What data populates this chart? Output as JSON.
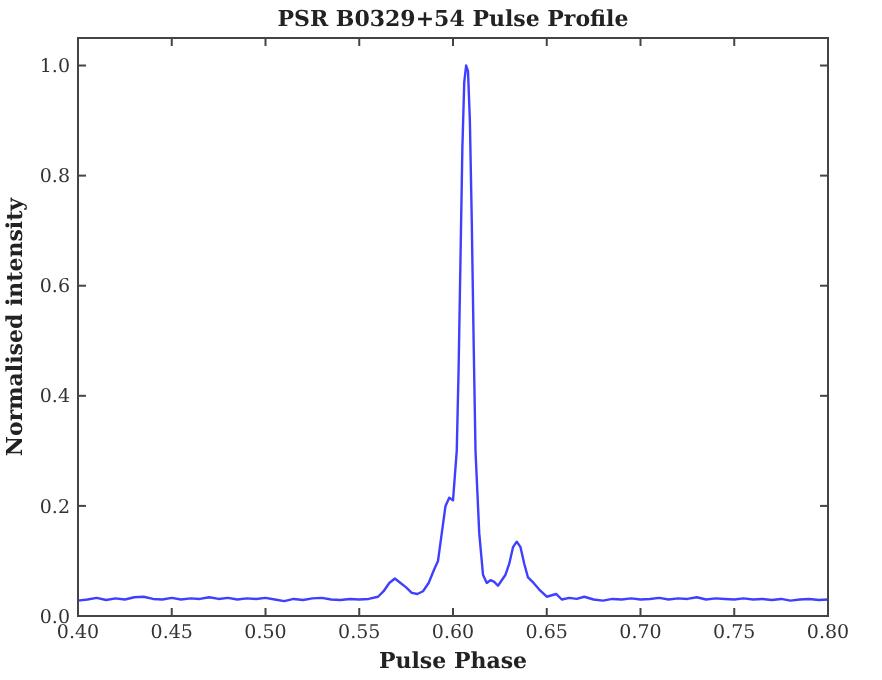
{
  "chart_data": {
    "type": "line",
    "title": "PSR B0329+54 Pulse Profile",
    "xlabel": "Pulse Phase",
    "ylabel": "Normalised intensity",
    "x": [
      0.4,
      0.405,
      0.41,
      0.415,
      0.42,
      0.425,
      0.43,
      0.435,
      0.44,
      0.445,
      0.45,
      0.455,
      0.46,
      0.465,
      0.47,
      0.475,
      0.48,
      0.485,
      0.49,
      0.495,
      0.5,
      0.505,
      0.51,
      0.515,
      0.52,
      0.525,
      0.53,
      0.535,
      0.54,
      0.545,
      0.55,
      0.555,
      0.56,
      0.563,
      0.566,
      0.569,
      0.572,
      0.575,
      0.578,
      0.581,
      0.584,
      0.587,
      0.59,
      0.592,
      0.594,
      0.596,
      0.598,
      0.6,
      0.602,
      0.603,
      0.604,
      0.605,
      0.606,
      0.607,
      0.608,
      0.609,
      0.61,
      0.611,
      0.612,
      0.614,
      0.616,
      0.618,
      0.62,
      0.622,
      0.624,
      0.626,
      0.628,
      0.63,
      0.632,
      0.634,
      0.636,
      0.638,
      0.64,
      0.643,
      0.646,
      0.65,
      0.655,
      0.658,
      0.662,
      0.666,
      0.67,
      0.675,
      0.68,
      0.685,
      0.69,
      0.695,
      0.7,
      0.705,
      0.71,
      0.715,
      0.72,
      0.725,
      0.73,
      0.735,
      0.74,
      0.745,
      0.75,
      0.755,
      0.76,
      0.765,
      0.77,
      0.775,
      0.78,
      0.785,
      0.79,
      0.795,
      0.8
    ],
    "series": [
      {
        "color": "#3f3fff",
        "values": [
          0.028,
          0.03,
          0.033,
          0.029,
          0.032,
          0.03,
          0.034,
          0.035,
          0.031,
          0.03,
          0.033,
          0.03,
          0.032,
          0.031,
          0.034,
          0.031,
          0.033,
          0.03,
          0.032,
          0.031,
          0.033,
          0.03,
          0.027,
          0.031,
          0.029,
          0.032,
          0.033,
          0.03,
          0.029,
          0.031,
          0.03,
          0.031,
          0.035,
          0.045,
          0.06,
          0.068,
          0.06,
          0.052,
          0.042,
          0.04,
          0.045,
          0.06,
          0.085,
          0.1,
          0.15,
          0.2,
          0.215,
          0.21,
          0.3,
          0.45,
          0.65,
          0.85,
          0.97,
          1.0,
          0.99,
          0.9,
          0.72,
          0.5,
          0.3,
          0.15,
          0.075,
          0.06,
          0.065,
          0.062,
          0.055,
          0.065,
          0.075,
          0.095,
          0.125,
          0.135,
          0.125,
          0.095,
          0.07,
          0.06,
          0.048,
          0.035,
          0.04,
          0.03,
          0.033,
          0.031,
          0.035,
          0.03,
          0.028,
          0.031,
          0.03,
          0.032,
          0.03,
          0.031,
          0.033,
          0.03,
          0.032,
          0.031,
          0.034,
          0.03,
          0.032,
          0.031,
          0.03,
          0.032,
          0.03,
          0.031,
          0.029,
          0.031,
          0.028,
          0.03,
          0.031,
          0.029,
          0.03
        ]
      }
    ],
    "xlim": [
      0.4,
      0.8
    ],
    "ylim": [
      0,
      1.05
    ],
    "xticks": [
      {
        "value": 0.4,
        "label": "0.40"
      },
      {
        "value": 0.45,
        "label": "0.45"
      },
      {
        "value": 0.5,
        "label": "0.50"
      },
      {
        "value": 0.55,
        "label": "0.55"
      },
      {
        "value": 0.6,
        "label": "0.60"
      },
      {
        "value": 0.65,
        "label": "0.65"
      },
      {
        "value": 0.7,
        "label": "0.70"
      },
      {
        "value": 0.75,
        "label": "0.75"
      },
      {
        "value": 0.8,
        "label": "0.80"
      }
    ],
    "yticks": [
      {
        "value": 0,
        "label": "0.0"
      },
      {
        "value": 0.2,
        "label": "0.2"
      },
      {
        "value": 0.4,
        "label": "0.4"
      },
      {
        "value": 0.6,
        "label": "0.6"
      },
      {
        "value": 0.8,
        "label": "0.8"
      },
      {
        "value": 1.0,
        "label": "1.0"
      }
    ],
    "grid": false,
    "marker": "none",
    "line_style": "solid"
  }
}
